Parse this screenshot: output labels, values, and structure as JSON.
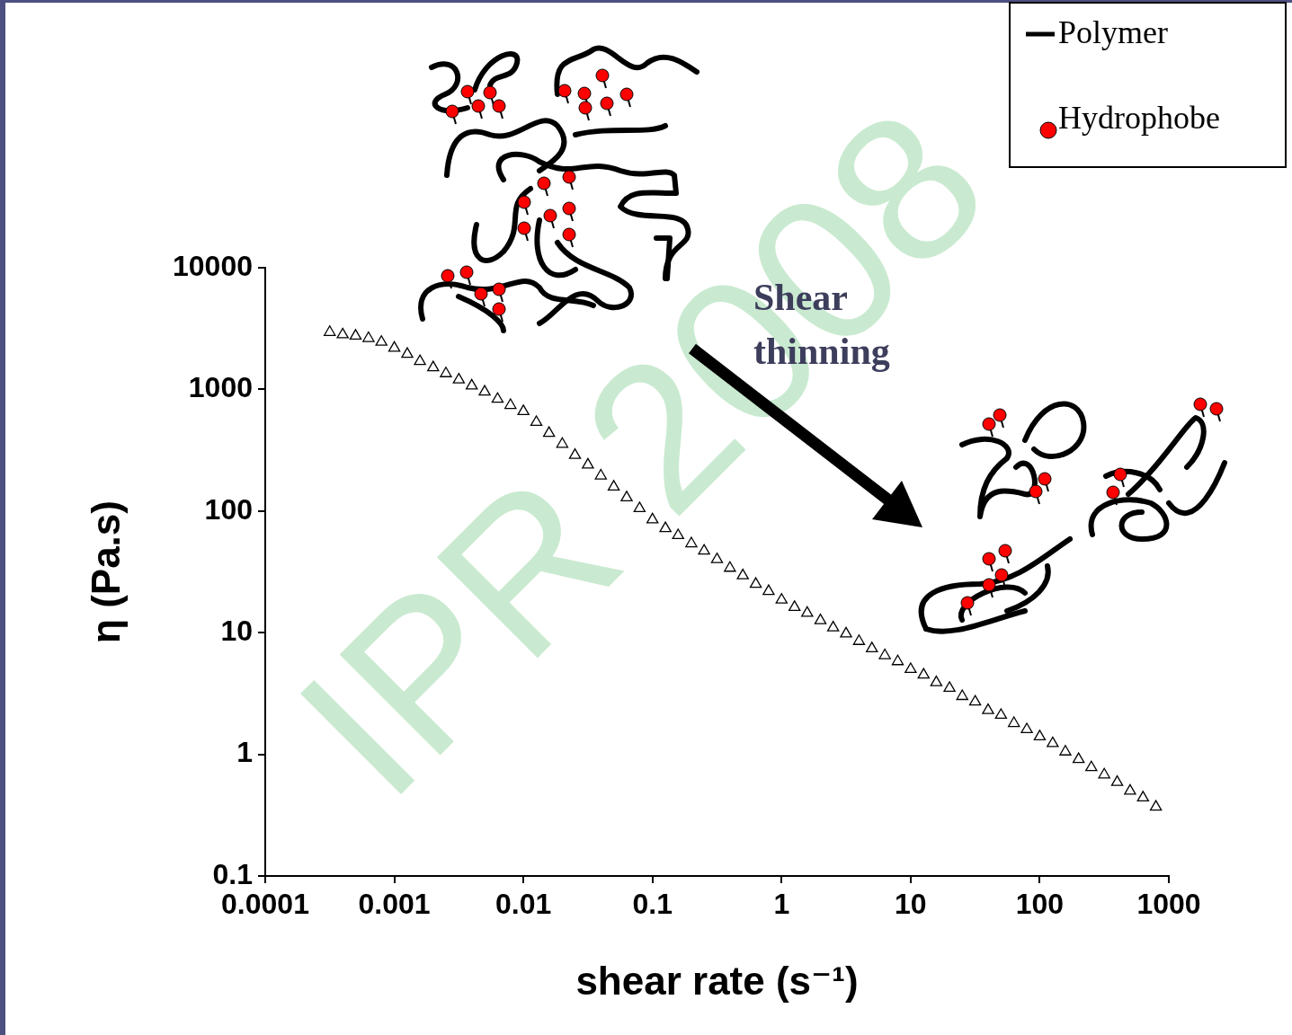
{
  "chart_data": {
    "type": "scatter",
    "x_label": "shear rate (s⁻¹)",
    "y_label": "η (Pa.s)",
    "log": true,
    "grid": false,
    "xlim": [
      0.0001,
      1000
    ],
    "ylim": [
      0.1,
      10000
    ],
    "xticks": [
      0.0001,
      0.001,
      0.01,
      0.1,
      1,
      10,
      100,
      1000
    ],
    "yticks": [
      0.1,
      1,
      10,
      100,
      1000,
      10000
    ],
    "marker": "triangle",
    "color": "#000000",
    "x": [
      0.000316,
      0.000398,
      0.000501,
      0.000631,
      0.000794,
      0.001,
      0.00126,
      0.00158,
      0.002,
      0.00251,
      0.00316,
      0.00398,
      0.00501,
      0.00631,
      0.00794,
      0.01,
      0.0126,
      0.0158,
      0.02,
      0.0251,
      0.0316,
      0.0398,
      0.0501,
      0.0631,
      0.0794,
      0.1,
      0.126,
      0.158,
      0.2,
      0.251,
      0.316,
      0.398,
      0.501,
      0.631,
      0.794,
      1,
      1.26,
      1.58,
      2,
      2.51,
      3.16,
      3.98,
      5.01,
      6.31,
      7.94,
      10,
      12.6,
      15.8,
      20,
      25.1,
      31.6,
      39.8,
      50.1,
      63.1,
      79.4,
      100,
      126,
      158,
      200,
      251,
      316,
      398,
      501,
      631,
      794
    ],
    "values": [
      2950,
      2820,
      2750,
      2630,
      2450,
      2190,
      1950,
      1700,
      1510,
      1350,
      1200,
      1070,
      955,
      832,
      741,
      660,
      537,
      437,
      355,
      288,
      240,
      195,
      158,
      129,
      105,
      85,
      72,
      63,
      54,
      47,
      40,
      34,
      29.5,
      25.1,
      21.9,
      18.6,
      16.2,
      14.5,
      12.6,
      11.0,
      9.8,
      8.5,
      7.4,
      6.5,
      5.8,
      5.0,
      4.5,
      3.9,
      3.5,
      3.0,
      2.7,
      2.3,
      2.1,
      1.8,
      1.6,
      1.4,
      1.23,
      1.05,
      0.91,
      0.78,
      0.68,
      0.59,
      0.5,
      0.44,
      0.37
    ],
    "annotations": [
      {
        "text": "Shear thinning"
      },
      {
        "text": "IPR 2008"
      }
    ],
    "legend": "upper right",
    "key": [
      {
        "label": "Polymer",
        "marker": "line",
        "color": "#000000"
      },
      {
        "label": "Hydrophobe",
        "marker": "circle",
        "color": "#ff0000"
      }
    ]
  }
}
